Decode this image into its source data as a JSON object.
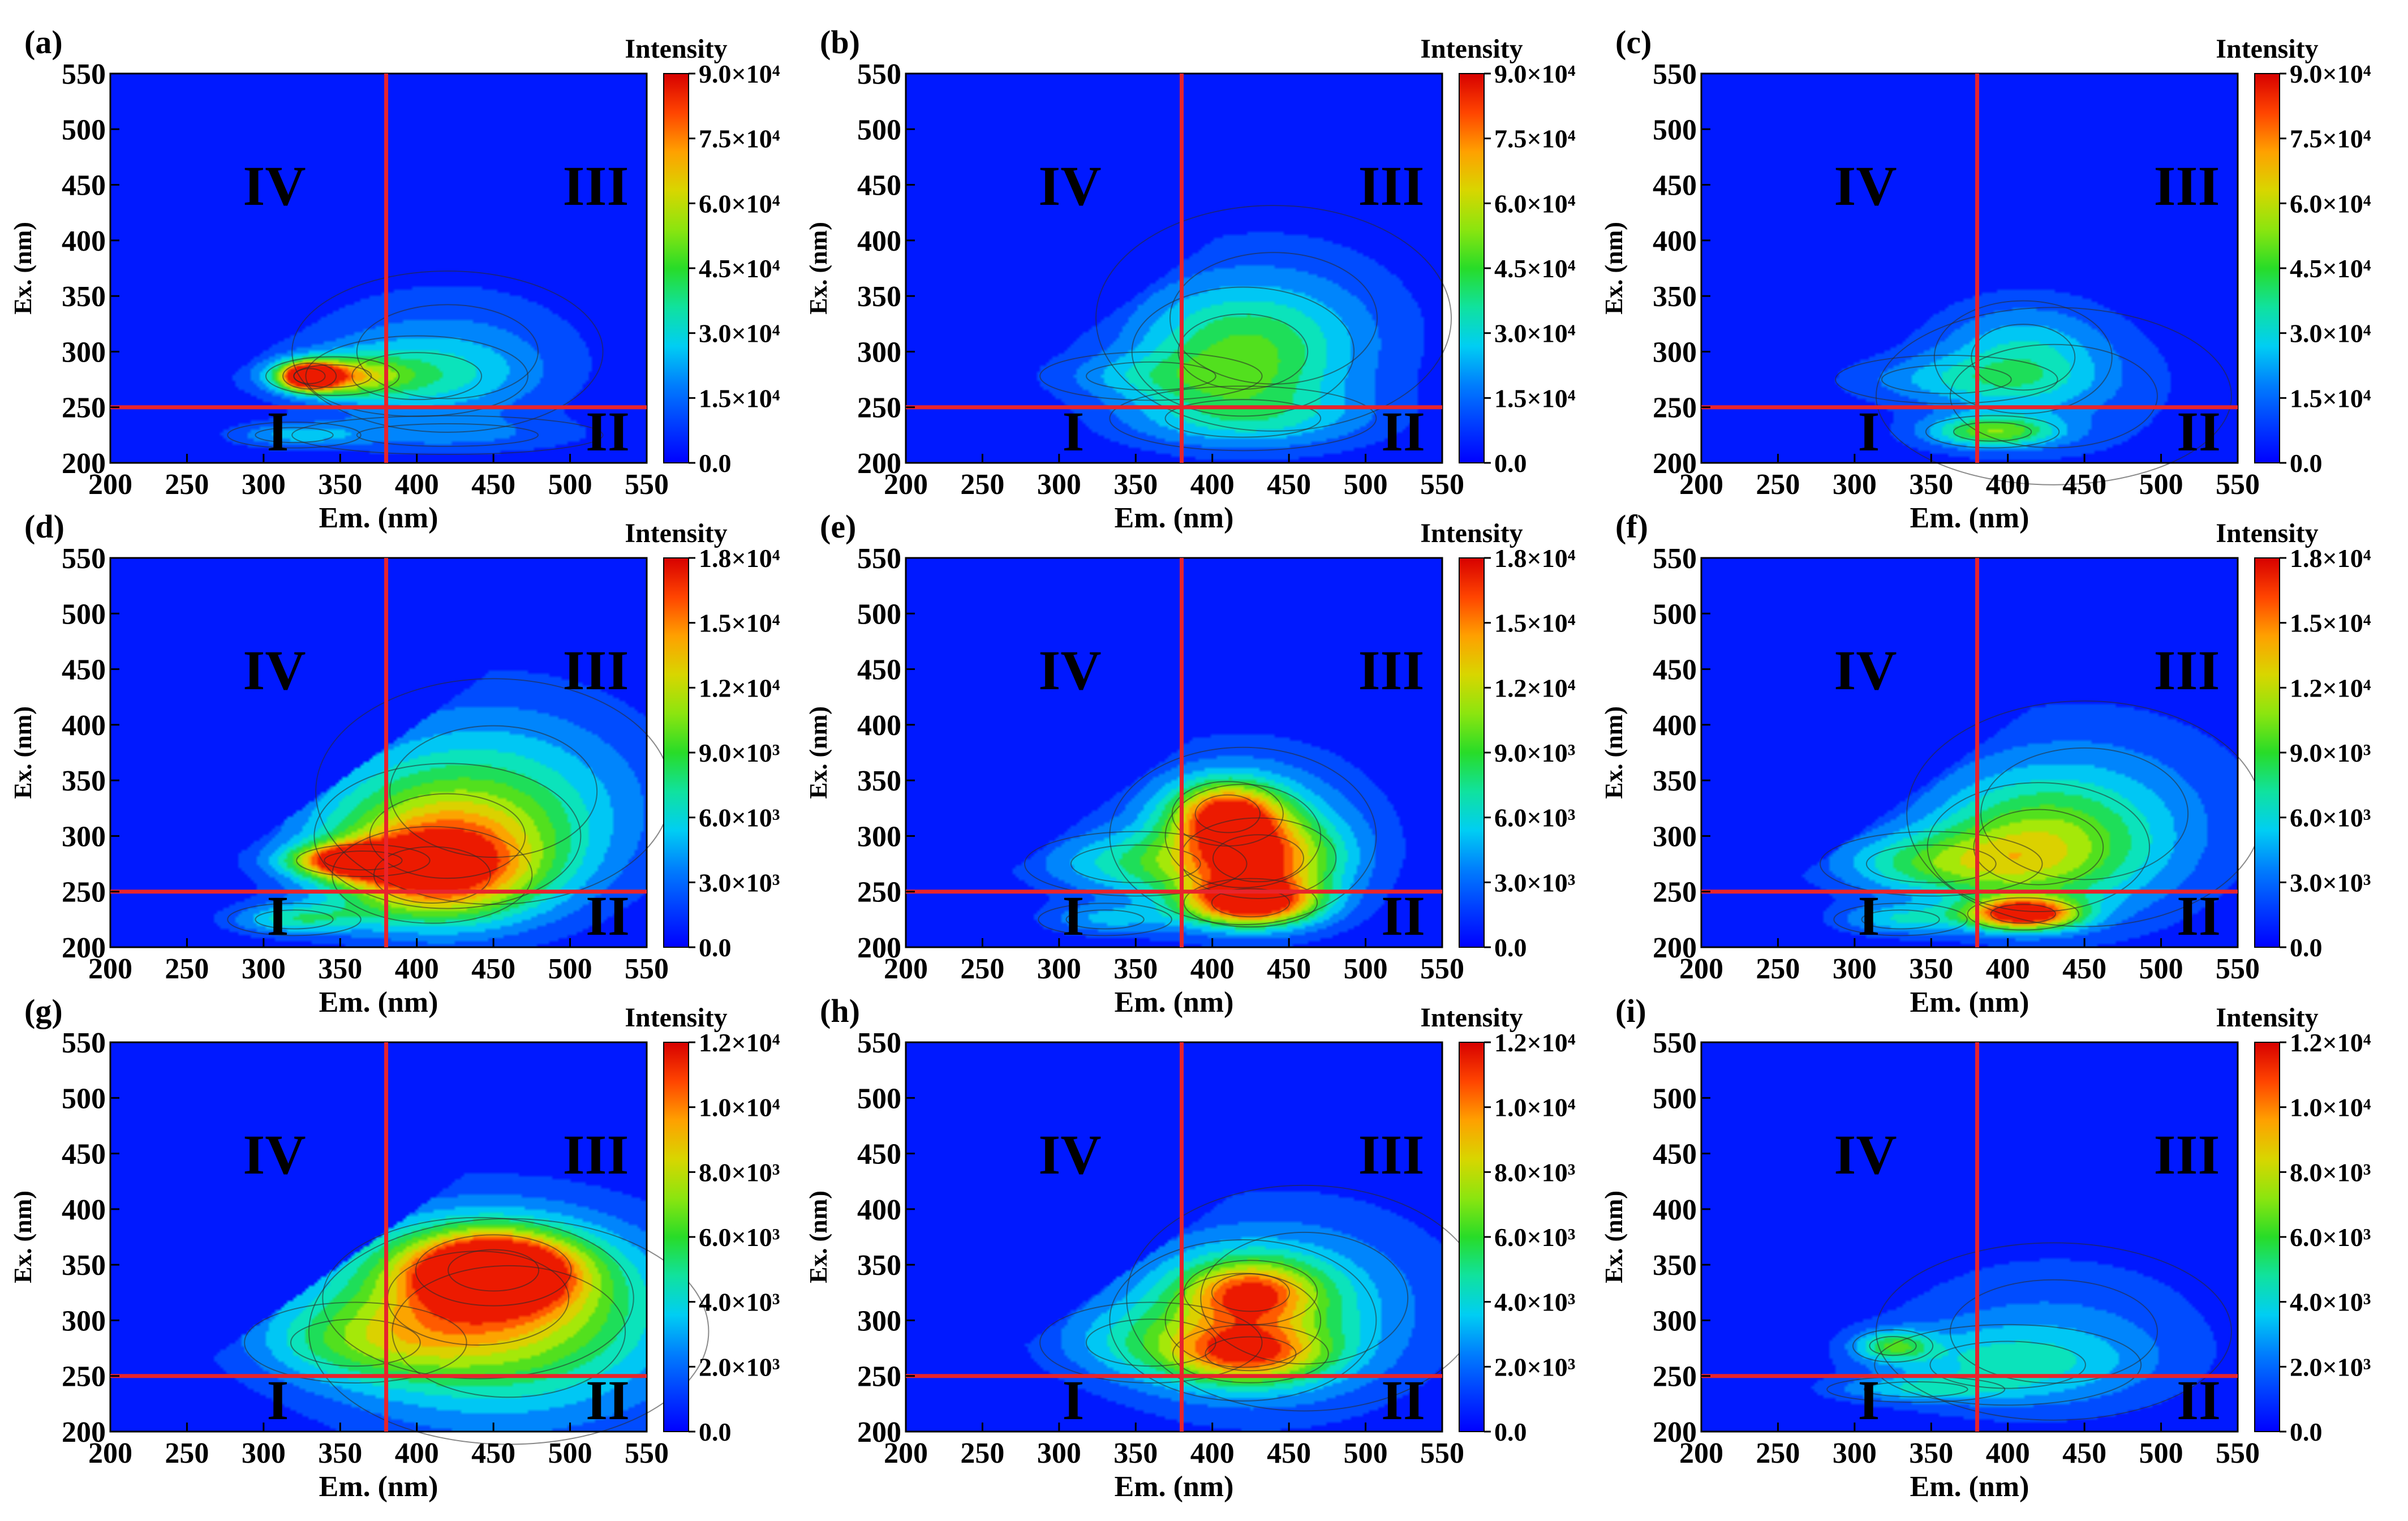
{
  "colors": {
    "background": "#0000ff",
    "divider": "#e8242c",
    "contour_line": "#2a2a2a",
    "quadrant_label": "#ffffff"
  },
  "chart_data": [
    {
      "panel": "(a)",
      "type": "heatmap",
      "colorbar_title": "Intensity",
      "xlabel": "Em. (nm)",
      "ylabel": "Ex. (nm)",
      "xlim": [
        200,
        550
      ],
      "ylim": [
        200,
        550
      ],
      "xticks": [
        "200",
        "250",
        "300",
        "350",
        "400",
        "450",
        "500",
        "550"
      ],
      "yticks": [
        "200",
        "250",
        "300",
        "350",
        "400",
        "450",
        "500",
        "550"
      ],
      "colorbar_max": 90000,
      "colorbar_ticks": [
        {
          "v": 0,
          "t": "0.0"
        },
        {
          "v": 15000,
          "t": "1.5×10⁴"
        },
        {
          "v": 30000,
          "t": "3.0×10⁴"
        },
        {
          "v": 45000,
          "t": "4.5×10⁴"
        },
        {
          "v": 60000,
          "t": "6.0×10⁴"
        },
        {
          "v": 75000,
          "t": "7.5×10⁴"
        },
        {
          "v": 90000,
          "t": "9.0×10⁴"
        }
      ],
      "divider_em": 380,
      "divider_ex": 250,
      "quadrants": {
        "I": "I",
        "II": "II",
        "III": "III",
        "IV": "IV"
      },
      "peaks": [
        {
          "em": 330,
          "ex": 278,
          "intensity": 90000,
          "sx": 12,
          "sy": 8
        },
        {
          "em": 345,
          "ex": 278,
          "intensity": 50000,
          "sx": 30,
          "sy": 12
        },
        {
          "em": 400,
          "ex": 278,
          "intensity": 22000,
          "sx": 50,
          "sy": 25
        },
        {
          "em": 420,
          "ex": 300,
          "intensity": 15000,
          "sx": 70,
          "sy": 50
        },
        {
          "em": 320,
          "ex": 225,
          "intensity": 20000,
          "sx": 30,
          "sy": 8
        },
        {
          "em": 420,
          "ex": 225,
          "intensity": 12000,
          "sx": 70,
          "sy": 12
        }
      ]
    },
    {
      "panel": "(b)",
      "type": "heatmap",
      "colorbar_title": "Intensity",
      "xlabel": "Em. (nm)",
      "ylabel": "Ex. (nm)",
      "xlim": [
        200,
        550
      ],
      "ylim": [
        200,
        550
      ],
      "xticks": [
        "200",
        "250",
        "300",
        "350",
        "400",
        "450",
        "500",
        "550"
      ],
      "yticks": [
        "200",
        "250",
        "300",
        "350",
        "400",
        "450",
        "500",
        "550"
      ],
      "colorbar_max": 90000,
      "colorbar_ticks": [
        {
          "v": 0,
          "t": "0.0"
        },
        {
          "v": 15000,
          "t": "1.5×10⁴"
        },
        {
          "v": 30000,
          "t": "3.0×10⁴"
        },
        {
          "v": 45000,
          "t": "4.5×10⁴"
        },
        {
          "v": 60000,
          "t": "6.0×10⁴"
        },
        {
          "v": 75000,
          "t": "7.5×10⁴"
        },
        {
          "v": 90000,
          "t": "9.0×10⁴"
        }
      ],
      "divider_em": 380,
      "divider_ex": 250,
      "quadrants": {
        "I": "I",
        "II": "II",
        "III": "III",
        "IV": "IV"
      },
      "peaks": [
        {
          "em": 420,
          "ex": 300,
          "intensity": 36000,
          "sx": 50,
          "sy": 40
        },
        {
          "em": 360,
          "ex": 278,
          "intensity": 15000,
          "sx": 50,
          "sy": 15
        },
        {
          "em": 420,
          "ex": 240,
          "intensity": 22000,
          "sx": 60,
          "sy": 20
        },
        {
          "em": 440,
          "ex": 330,
          "intensity": 12000,
          "sx": 80,
          "sy": 70
        }
      ]
    },
    {
      "panel": "(c)",
      "type": "heatmap",
      "colorbar_title": "Intensity",
      "xlabel": "Em. (nm)",
      "ylabel": "Ex. (nm)",
      "xlim": [
        200,
        550
      ],
      "ylim": [
        200,
        550
      ],
      "xticks": [
        "200",
        "250",
        "300",
        "350",
        "400",
        "450",
        "500",
        "550"
      ],
      "yticks": [
        "200",
        "250",
        "300",
        "350",
        "400",
        "450",
        "500",
        "550"
      ],
      "colorbar_max": 90000,
      "colorbar_ticks": [
        {
          "v": 0,
          "t": "0.0"
        },
        {
          "v": 15000,
          "t": "1.5×10⁴"
        },
        {
          "v": 30000,
          "t": "3.0×10⁴"
        },
        {
          "v": 45000,
          "t": "4.5×10⁴"
        },
        {
          "v": 60000,
          "t": "6.0×10⁴"
        },
        {
          "v": 75000,
          "t": "7.5×10⁴"
        },
        {
          "v": 90000,
          "t": "9.0×10⁴"
        }
      ],
      "divider_em": 380,
      "divider_ex": 250,
      "quadrants": {
        "I": "I",
        "II": "II",
        "III": "III",
        "IV": "IV"
      },
      "peaks": [
        {
          "em": 390,
          "ex": 228,
          "intensity": 42000,
          "sx": 30,
          "sy": 10
        },
        {
          "em": 410,
          "ex": 295,
          "intensity": 25000,
          "sx": 40,
          "sy": 35
        },
        {
          "em": 360,
          "ex": 275,
          "intensity": 15000,
          "sx": 50,
          "sy": 15
        },
        {
          "em": 430,
          "ex": 260,
          "intensity": 10000,
          "sx": 80,
          "sy": 55
        }
      ]
    },
    {
      "panel": "(d)",
      "type": "heatmap",
      "colorbar_title": "Intensity",
      "xlabel": "Em. (nm)",
      "ylabel": "Ex. (nm)",
      "xlim": [
        200,
        550
      ],
      "ylim": [
        200,
        550
      ],
      "xticks": [
        "200",
        "250",
        "300",
        "350",
        "400",
        "450",
        "500",
        "550"
      ],
      "yticks": [
        "200",
        "250",
        "300",
        "350",
        "400",
        "450",
        "500",
        "550"
      ],
      "colorbar_max": 18000,
      "colorbar_ticks": [
        {
          "v": 0,
          "t": "0.0"
        },
        {
          "v": 3000,
          "t": "3.0×10³"
        },
        {
          "v": 6000,
          "t": "6.0×10³"
        },
        {
          "v": 9000,
          "t": "9.0×10³"
        },
        {
          "v": 12000,
          "t": "1.2×10⁴"
        },
        {
          "v": 15000,
          "t": "1.5×10⁴"
        },
        {
          "v": 18000,
          "t": "1.8×10⁴"
        }
      ],
      "divider_em": 380,
      "divider_ex": 250,
      "quadrants": {
        "I": "I",
        "II": "II",
        "III": "III",
        "IV": "IV"
      },
      "peaks": [
        {
          "em": 365,
          "ex": 278,
          "intensity": 17000,
          "sx": 30,
          "sy": 10
        },
        {
          "em": 410,
          "ex": 265,
          "intensity": 12000,
          "sx": 45,
          "sy": 30
        },
        {
          "em": 420,
          "ex": 300,
          "intensity": 8000,
          "sx": 60,
          "sy": 45
        },
        {
          "em": 320,
          "ex": 225,
          "intensity": 6000,
          "sx": 30,
          "sy": 10
        },
        {
          "em": 450,
          "ex": 340,
          "intensity": 5000,
          "sx": 80,
          "sy": 70
        }
      ]
    },
    {
      "panel": "(e)",
      "type": "heatmap",
      "colorbar_title": "Intensity",
      "xlabel": "Em. (nm)",
      "ylabel": "Ex. (nm)",
      "xlim": [
        200,
        550
      ],
      "ylim": [
        200,
        550
      ],
      "xticks": [
        "200",
        "250",
        "300",
        "350",
        "400",
        "450",
        "500",
        "550"
      ],
      "yticks": [
        "200",
        "250",
        "300",
        "350",
        "400",
        "450",
        "500",
        "550"
      ],
      "colorbar_max": 18000,
      "colorbar_ticks": [
        {
          "v": 0,
          "t": "0.0"
        },
        {
          "v": 3000,
          "t": "3.0×10³"
        },
        {
          "v": 6000,
          "t": "6.0×10³"
        },
        {
          "v": 9000,
          "t": "9.0×10³"
        },
        {
          "v": 12000,
          "t": "1.2×10⁴"
        },
        {
          "v": 15000,
          "t": "1.5×10⁴"
        },
        {
          "v": 18000,
          "t": "1.8×10⁴"
        }
      ],
      "divider_em": 380,
      "divider_ex": 250,
      "quadrants": {
        "I": "I",
        "II": "II",
        "III": "III",
        "IV": "IV"
      },
      "peaks": [
        {
          "em": 425,
          "ex": 240,
          "intensity": 16000,
          "sx": 30,
          "sy": 15
        },
        {
          "em": 410,
          "ex": 320,
          "intensity": 12500,
          "sx": 25,
          "sy": 20
        },
        {
          "em": 430,
          "ex": 280,
          "intensity": 11000,
          "sx": 35,
          "sy": 25
        },
        {
          "em": 420,
          "ex": 300,
          "intensity": 6000,
          "sx": 60,
          "sy": 55
        },
        {
          "em": 350,
          "ex": 275,
          "intensity": 5000,
          "sx": 50,
          "sy": 20
        },
        {
          "em": 330,
          "ex": 225,
          "intensity": 4000,
          "sx": 30,
          "sy": 10
        }
      ]
    },
    {
      "panel": "(f)",
      "type": "heatmap",
      "colorbar_title": "Intensity",
      "xlabel": "Em. (nm)",
      "ylabel": "Ex. (nm)",
      "xlim": [
        200,
        550
      ],
      "ylim": [
        200,
        550
      ],
      "xticks": [
        "200",
        "250",
        "300",
        "350",
        "400",
        "450",
        "500",
        "550"
      ],
      "yticks": [
        "200",
        "250",
        "300",
        "350",
        "400",
        "450",
        "500",
        "550"
      ],
      "colorbar_max": 18000,
      "colorbar_ticks": [
        {
          "v": 0,
          "t": "0.0"
        },
        {
          "v": 3000,
          "t": "3.0×10³"
        },
        {
          "v": 6000,
          "t": "6.0×10³"
        },
        {
          "v": 9000,
          "t": "9.0×10³"
        },
        {
          "v": 12000,
          "t": "1.2×10⁴"
        },
        {
          "v": 15000,
          "t": "1.5×10⁴"
        },
        {
          "v": 18000,
          "t": "1.8×10⁴"
        }
      ],
      "divider_em": 380,
      "divider_ex": 250,
      "quadrants": {
        "I": "I",
        "II": "II",
        "III": "III",
        "IV": "IV"
      },
      "peaks": [
        {
          "em": 410,
          "ex": 230,
          "intensity": 17000,
          "sx": 25,
          "sy": 10
        },
        {
          "em": 420,
          "ex": 290,
          "intensity": 8000,
          "sx": 50,
          "sy": 40
        },
        {
          "em": 350,
          "ex": 275,
          "intensity": 6000,
          "sx": 50,
          "sy": 20
        },
        {
          "em": 330,
          "ex": 225,
          "intensity": 5000,
          "sx": 30,
          "sy": 10
        },
        {
          "em": 450,
          "ex": 320,
          "intensity": 4000,
          "sx": 80,
          "sy": 70
        }
      ]
    },
    {
      "panel": "(g)",
      "type": "heatmap",
      "colorbar_title": "Intensity",
      "xlabel": "Em. (nm)",
      "ylabel": "Ex. (nm)",
      "xlim": [
        200,
        550
      ],
      "ylim": [
        200,
        550
      ],
      "xticks": [
        "200",
        "250",
        "300",
        "350",
        "400",
        "450",
        "500",
        "550"
      ],
      "yticks": [
        "200",
        "250",
        "300",
        "350",
        "400",
        "450",
        "500",
        "550"
      ],
      "colorbar_max": 12000,
      "colorbar_ticks": [
        {
          "v": 0,
          "t": "0.0"
        },
        {
          "v": 2000,
          "t": "2.0×10³"
        },
        {
          "v": 4000,
          "t": "4.0×10³"
        },
        {
          "v": 6000,
          "t": "6.0×10³"
        },
        {
          "v": 8000,
          "t": "8.0×10³"
        },
        {
          "v": 10000,
          "t": "1.0×10⁴"
        },
        {
          "v": 12000,
          "t": "1.2×10⁴"
        }
      ],
      "divider_em": 380,
      "divider_ex": 250,
      "quadrants": {
        "I": "I",
        "II": "II",
        "III": "III",
        "IV": "IV"
      },
      "peaks": [
        {
          "em": 450,
          "ex": 345,
          "intensity": 12000,
          "sx": 35,
          "sy": 22
        },
        {
          "em": 440,
          "ex": 320,
          "intensity": 6000,
          "sx": 70,
          "sy": 50
        },
        {
          "em": 460,
          "ex": 290,
          "intensity": 4000,
          "sx": 90,
          "sy": 70
        },
        {
          "em": 360,
          "ex": 280,
          "intensity": 3000,
          "sx": 50,
          "sy": 25
        }
      ]
    },
    {
      "panel": "(h)",
      "type": "heatmap",
      "colorbar_title": "Intensity",
      "xlabel": "Em. (nm)",
      "ylabel": "Ex. (nm)",
      "xlim": [
        200,
        550
      ],
      "ylim": [
        200,
        550
      ],
      "xticks": [
        "200",
        "250",
        "300",
        "350",
        "400",
        "450",
        "500",
        "550"
      ],
      "yticks": [
        "200",
        "250",
        "300",
        "350",
        "400",
        "450",
        "500",
        "550"
      ],
      "colorbar_max": 12000,
      "colorbar_ticks": [
        {
          "v": 0,
          "t": "0.0"
        },
        {
          "v": 2000,
          "t": "2.0×10³"
        },
        {
          "v": 4000,
          "t": "4.0×10³"
        },
        {
          "v": 6000,
          "t": "6.0×10³"
        },
        {
          "v": 8000,
          "t": "8.0×10³"
        },
        {
          "v": 10000,
          "t": "1.0×10⁴"
        },
        {
          "v": 12000,
          "t": "1.2×10⁴"
        }
      ],
      "divider_em": 380,
      "divider_ex": 250,
      "quadrants": {
        "I": "I",
        "II": "II",
        "III": "III",
        "IV": "IV"
      },
      "peaks": [
        {
          "em": 425,
          "ex": 325,
          "intensity": 6500,
          "sx": 30,
          "sy": 20
        },
        {
          "em": 425,
          "ex": 270,
          "intensity": 6500,
          "sx": 35,
          "sy": 18
        },
        {
          "em": 420,
          "ex": 300,
          "intensity": 4000,
          "sx": 60,
          "sy": 50
        },
        {
          "em": 360,
          "ex": 280,
          "intensity": 2500,
          "sx": 50,
          "sy": 25
        },
        {
          "em": 460,
          "ex": 320,
          "intensity": 2000,
          "sx": 80,
          "sy": 70
        }
      ]
    },
    {
      "panel": "(i)",
      "type": "heatmap",
      "colorbar_title": "Intensity",
      "xlabel": "Em. (nm)",
      "ylabel": "Ex. (nm)",
      "xlim": [
        200,
        550
      ],
      "ylim": [
        200,
        550
      ],
      "xticks": [
        "200",
        "250",
        "300",
        "350",
        "400",
        "450",
        "500",
        "550"
      ],
      "yticks": [
        "200",
        "250",
        "300",
        "350",
        "400",
        "450",
        "500",
        "550"
      ],
      "colorbar_max": 12000,
      "colorbar_ticks": [
        {
          "v": 0,
          "t": "0.0"
        },
        {
          "v": 2000,
          "t": "2.0×10³"
        },
        {
          "v": 4000,
          "t": "4.0×10³"
        },
        {
          "v": 6000,
          "t": "6.0×10³"
        },
        {
          "v": 8000,
          "t": "8.0×10³"
        },
        {
          "v": 10000,
          "t": "1.0×10⁴"
        },
        {
          "v": 12000,
          "t": "1.2×10⁴"
        }
      ],
      "divider_em": 380,
      "divider_ex": 250,
      "quadrants": {
        "I": "I",
        "II": "II",
        "III": "III",
        "IV": "IV"
      },
      "peaks": [
        {
          "em": 325,
          "ex": 277,
          "intensity": 4500,
          "sx": 18,
          "sy": 10
        },
        {
          "em": 400,
          "ex": 260,
          "intensity": 3000,
          "sx": 60,
          "sy": 25
        },
        {
          "em": 340,
          "ex": 238,
          "intensity": 2500,
          "sx": 40,
          "sy": 8
        },
        {
          "em": 430,
          "ex": 290,
          "intensity": 2000,
          "sx": 80,
          "sy": 55
        }
      ]
    }
  ]
}
